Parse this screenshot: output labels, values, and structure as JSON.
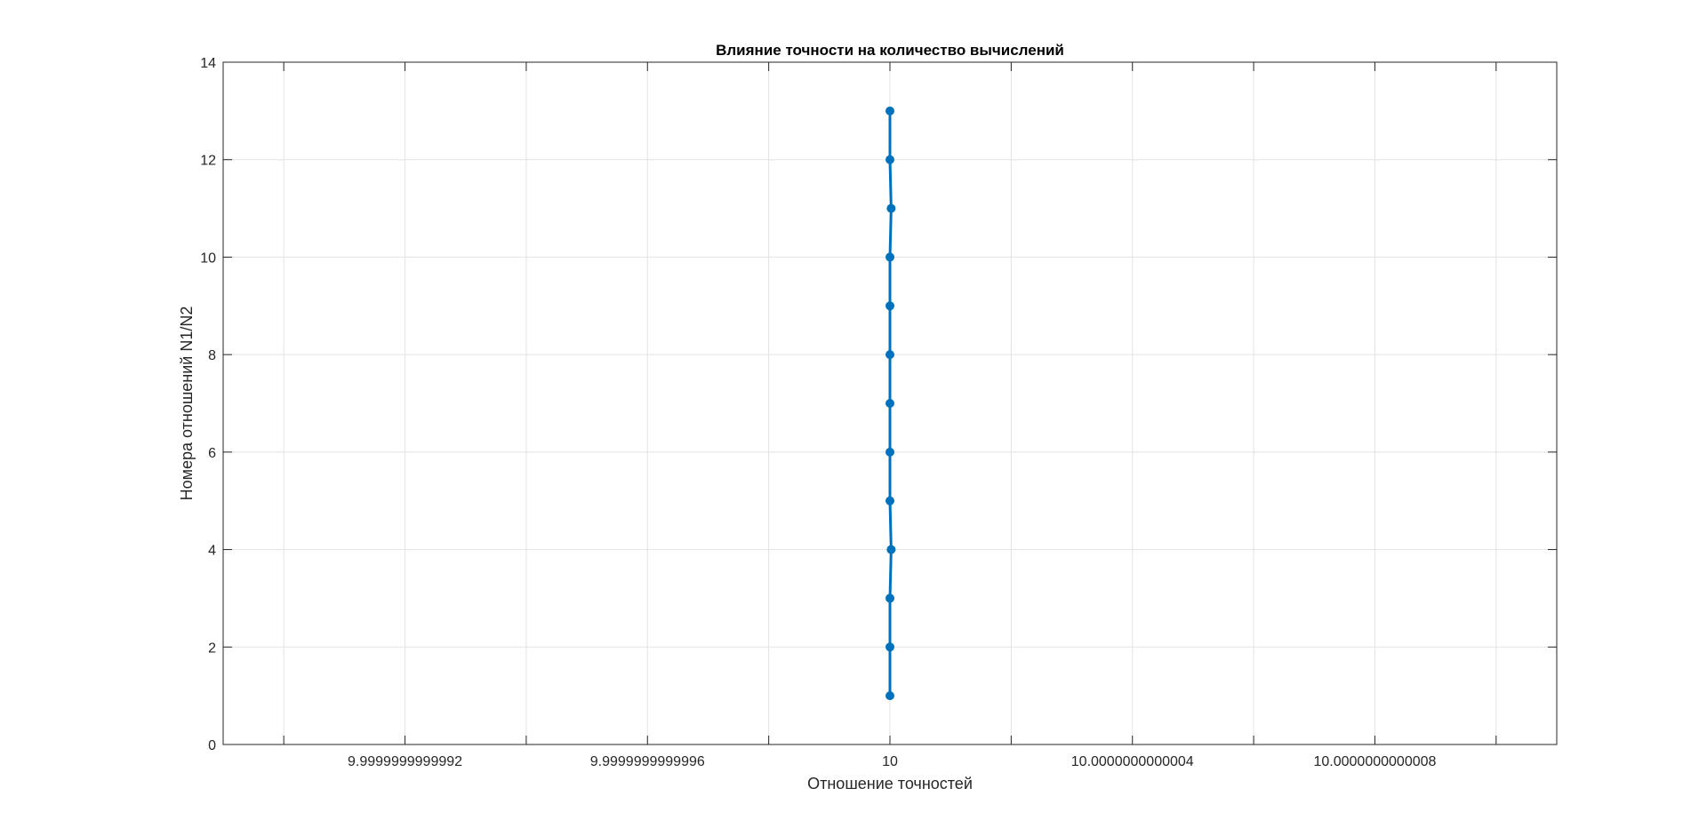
{
  "chart_data": {
    "type": "line",
    "title": "Влияние точности на количество вычислений",
    "xlabel": "Отношение точностей",
    "ylabel": "Номера отношений N1/N2",
    "x_tick_labels": [
      {
        "offset": -8e-13,
        "label": "9.9999999999992"
      },
      {
        "offset": -4e-13,
        "label": "9.9999999999996"
      },
      {
        "offset": 0,
        "label": "10"
      },
      {
        "offset": 4e-13,
        "label": "10.0000000000004"
      },
      {
        "offset": 8e-13,
        "label": "10.0000000000008"
      }
    ],
    "x_minor_offsets": [
      -1e-12,
      -6e-13,
      -2e-13,
      2e-13,
      6e-13,
      1e-12
    ],
    "x_offset_range": [
      -1.1e-12,
      1.1e-12
    ],
    "x_center": 10,
    "y_ticks": [
      0,
      2,
      4,
      6,
      8,
      10,
      12,
      14
    ],
    "ylim": [
      0,
      14
    ],
    "grid": true,
    "series": [
      {
        "color": "#0072BD",
        "x_offsets": [
          0,
          0,
          0,
          2e-15,
          0,
          0,
          0,
          0,
          0,
          0,
          2e-15,
          0,
          0
        ],
        "y": [
          1,
          2,
          3,
          4,
          5,
          6,
          7,
          8,
          9,
          10,
          11,
          12,
          13
        ]
      }
    ]
  }
}
